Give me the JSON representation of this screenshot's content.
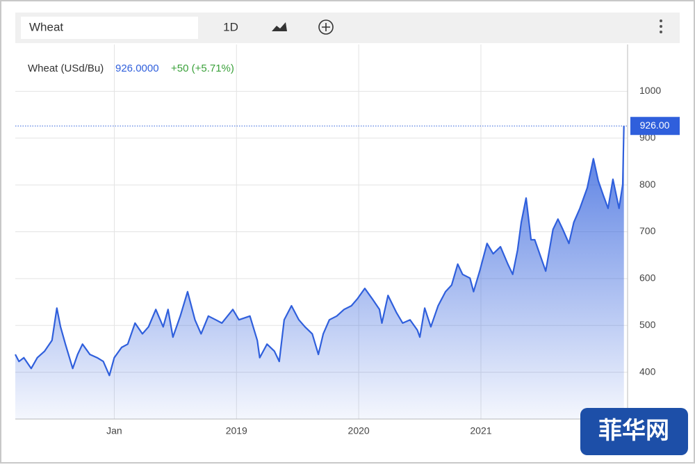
{
  "toolbar": {
    "symbol": "Wheat",
    "interval": "1D"
  },
  "watermark": "菲华网",
  "chart_data": {
    "type": "area",
    "quote": {
      "name": "Wheat (USd/Bu)",
      "price": "926.0000",
      "change": "+50 (+5.71%)"
    },
    "price_tag": "926.00",
    "series": [
      {
        "name": "Wheat (USd/Bu)",
        "color": "#2f5fdc",
        "x": [
          2017.19,
          2017.22,
          2017.26,
          2017.32,
          2017.37,
          2017.43,
          2017.49,
          2017.53,
          2017.56,
          2017.6,
          2017.66,
          2017.7,
          2017.74,
          2017.8,
          2017.86,
          2017.91,
          2017.96,
          2018.0,
          2018.06,
          2018.11,
          2018.17,
          2018.23,
          2018.28,
          2018.34,
          2018.4,
          2018.44,
          2018.48,
          2018.54,
          2018.6,
          2018.66,
          2018.71,
          2018.77,
          2018.83,
          2018.88,
          2018.97,
          2019.02,
          2019.11,
          2019.17,
          2019.19,
          2019.25,
          2019.31,
          2019.35,
          2019.39,
          2019.45,
          2019.51,
          2019.56,
          2019.62,
          2019.67,
          2019.71,
          2019.76,
          2019.82,
          2019.88,
          2019.94,
          2019.99,
          2020.05,
          2020.11,
          2020.17,
          2020.19,
          2020.24,
          2020.31,
          2020.36,
          2020.42,
          2020.48,
          2020.5,
          2020.54,
          2020.59,
          2020.65,
          2020.71,
          2020.76,
          2020.81,
          2020.85,
          2020.91,
          2020.94,
          2020.99,
          2021.05,
          2021.1,
          2021.16,
          2021.22,
          2021.26,
          2021.3,
          2021.33,
          2021.37,
          2021.41,
          2021.44,
          2021.49,
          2021.53,
          2021.59,
          2021.63,
          2021.67,
          2021.72,
          2021.76,
          2021.81,
          2021.87,
          2021.92,
          2021.96,
          2022.0,
          2022.04,
          2022.08,
          2022.13,
          2022.16,
          2022.17
        ],
        "values": [
          438,
          423,
          431,
          408,
          431,
          445,
          468,
          537,
          497,
          460,
          408,
          438,
          460,
          438,
          431,
          423,
          393,
          431,
          453,
          460,
          505,
          482,
          497,
          534,
          497,
          534,
          475,
          520,
          572,
          512,
          482,
          520,
          512,
          505,
          534,
          512,
          520,
          468,
          431,
          460,
          445,
          423,
          512,
          542,
          512,
          497,
          482,
          438,
          482,
          512,
          520,
          534,
          542,
          557,
          579,
          557,
          534,
          505,
          564,
          527,
          505,
          512,
          490,
          475,
          537,
          497,
          542,
          572,
          586,
          631,
          609,
          601,
          572,
          616,
          675,
          653,
          668,
          631,
          609,
          661,
          720,
          772,
          683,
          683,
          646,
          616,
          705,
          727,
          705,
          675,
          720,
          750,
          794,
          856,
          809,
          779,
          750,
          812,
          750,
          801,
          926
        ]
      }
    ],
    "xlim": [
      2017.19,
      2022.2
    ],
    "xticks": [
      {
        "value": 2018,
        "label": "Jan"
      },
      2019,
      2020,
      2021
    ],
    "ylim": [
      300,
      1100
    ],
    "yticks": [
      400,
      500,
      600,
      700,
      800,
      900,
      1000
    ],
    "grid": true
  }
}
